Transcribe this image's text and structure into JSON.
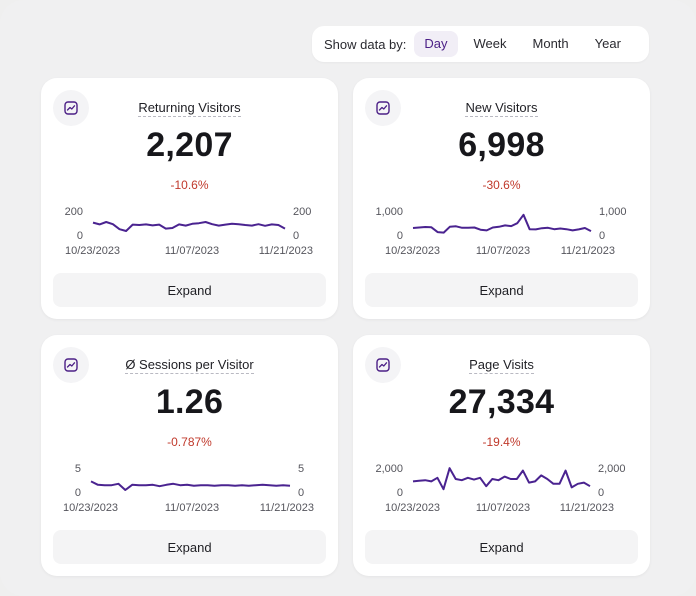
{
  "toolbar": {
    "label": "Show data by:",
    "options": [
      "Day",
      "Week",
      "Month",
      "Year"
    ],
    "selected": "Day"
  },
  "colors": {
    "accent": "#4b1f86",
    "line": "#4a2390",
    "negative": "#c0392b"
  },
  "cards": [
    {
      "icon": "chart-line-icon",
      "title": "Returning Visitors",
      "value": "2,207",
      "delta": "-10.6%",
      "expand_label": "Expand",
      "y_ticks": [
        "200",
        "0"
      ],
      "x_ticks": [
        "10/23/2023",
        "11/07/2023",
        "11/21/2023"
      ]
    },
    {
      "icon": "chart-line-icon",
      "title": "New Visitors",
      "value": "6,998",
      "delta": "-30.6%",
      "expand_label": "Expand",
      "y_ticks": [
        "1,000",
        "0"
      ],
      "x_ticks": [
        "10/23/2023",
        "11/07/2023",
        "11/21/2023"
      ]
    },
    {
      "icon": "chart-line-icon",
      "title": "Ø Sessions per Visitor",
      "value": "1.26",
      "delta": "-0.787%",
      "expand_label": "Expand",
      "y_ticks": [
        "5",
        "0"
      ],
      "x_ticks": [
        "10/23/2023",
        "11/07/2023",
        "11/21/2023"
      ]
    },
    {
      "icon": "chart-line-icon",
      "title": "Page Visits",
      "value": "27,334",
      "delta": "-19.4%",
      "expand_label": "Expand",
      "y_ticks": [
        "2,000",
        "0"
      ],
      "x_ticks": [
        "10/23/2023",
        "11/07/2023",
        "11/21/2023"
      ]
    }
  ],
  "chart_data": [
    {
      "type": "line",
      "title": "Returning Visitors",
      "x_start": "10/23/2023",
      "x_end": "11/21/2023",
      "ylim": [
        0,
        200
      ],
      "values": [
        95,
        80,
        100,
        82,
        40,
        25,
        78,
        75,
        80,
        72,
        78,
        45,
        50,
        80,
        70,
        85,
        90,
        100,
        82,
        70,
        78,
        85,
        82,
        75,
        70,
        82,
        68,
        80,
        75,
        45
      ]
    },
    {
      "type": "line",
      "title": "New Visitors",
      "x_start": "10/23/2023",
      "x_end": "11/21/2023",
      "ylim": [
        0,
        1000
      ],
      "values": [
        250,
        270,
        290,
        280,
        80,
        60,
        300,
        320,
        260,
        260,
        270,
        180,
        150,
        270,
        300,
        360,
        330,
        450,
        800,
        200,
        190,
        240,
        260,
        200,
        230,
        200,
        150,
        190,
        250,
        120
      ]
    },
    {
      "type": "line",
      "title": "Ø Sessions per Visitor",
      "x_start": "10/23/2023",
      "x_end": "11/21/2023",
      "ylim": [
        0,
        5
      ],
      "values": [
        2.0,
        1.3,
        1.2,
        1.2,
        1.5,
        0.2,
        1.3,
        1.2,
        1.2,
        1.3,
        1.0,
        1.3,
        1.5,
        1.2,
        1.3,
        1.1,
        1.2,
        1.2,
        1.1,
        1.2,
        1.2,
        1.1,
        1.2,
        1.1,
        1.2,
        1.3,
        1.2,
        1.1,
        1.2,
        1.1
      ]
    },
    {
      "type": "line",
      "title": "Page Visits",
      "x_start": "10/23/2023",
      "x_end": "11/21/2023",
      "ylim": [
        0,
        2000
      ],
      "values": [
        800,
        850,
        900,
        800,
        1100,
        150,
        1900,
        1000,
        900,
        1100,
        950,
        1100,
        400,
        1000,
        900,
        1200,
        1000,
        1000,
        1700,
        700,
        800,
        1300,
        1000,
        600,
        600,
        1700,
        300,
        600,
        700,
        400
      ]
    }
  ]
}
